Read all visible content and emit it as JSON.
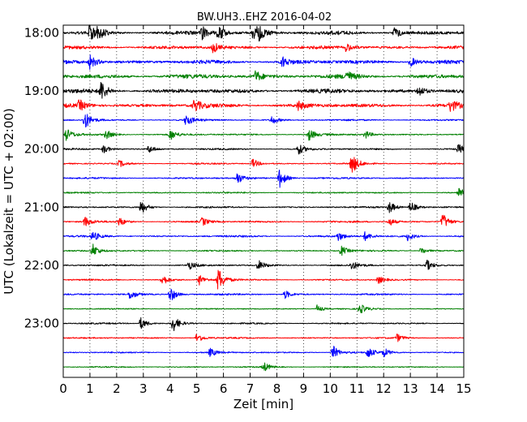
{
  "chart_data": {
    "type": "line",
    "chart_kind": "seismogram-dayplot",
    "title": "BW.UH3..EHZ 2016-04-02",
    "xlabel": "Zeit  [min]",
    "ylabel": "UTC (Lokalzeit = UTC + 02:00)",
    "xlim": [
      0,
      15
    ],
    "x_ticks": [
      "0",
      "1",
      "2",
      "3",
      "4",
      "5",
      "6",
      "7",
      "8",
      "9",
      "10",
      "11",
      "12",
      "13",
      "14",
      "15"
    ],
    "y_ticks": [
      {
        "label": "18:00",
        "row": 0
      },
      {
        "label": "19:00",
        "row": 4
      },
      {
        "label": "20:00",
        "row": 8
      },
      {
        "label": "21:00",
        "row": 12
      },
      {
        "label": "22:00",
        "row": 16
      },
      {
        "label": "23:00",
        "row": 20
      }
    ],
    "minutes_per_row": 15,
    "row_count": 24,
    "grid": {
      "x": true,
      "y": false,
      "style": "dotted"
    },
    "trace_colors": [
      "#000000",
      "#ff0000",
      "#0000ff",
      "#008000"
    ],
    "rows": [
      {
        "start": "18:00",
        "color": "#000000",
        "noise": 0.9,
        "events": [
          {
            "t": 1.0,
            "amp": 2.2
          },
          {
            "t": 1.3,
            "amp": 1.2
          },
          {
            "t": 5.2,
            "amp": 1.4
          },
          {
            "t": 5.8,
            "amp": 1.8
          },
          {
            "t": 7.1,
            "amp": 1.4
          },
          {
            "t": 7.3,
            "amp": 1.8
          },
          {
            "t": 12.4,
            "amp": 1.3
          }
        ]
      },
      {
        "start": "18:15",
        "color": "#ff0000",
        "noise": 0.8,
        "events": [
          {
            "t": 5.6,
            "amp": 1.2
          },
          {
            "t": 10.6,
            "amp": 1.1
          }
        ]
      },
      {
        "start": "18:30",
        "color": "#0000ff",
        "noise": 0.9,
        "events": [
          {
            "t": 1.0,
            "amp": 1.6
          },
          {
            "t": 8.2,
            "amp": 1.3
          },
          {
            "t": 13.0,
            "amp": 1.2
          }
        ]
      },
      {
        "start": "18:45",
        "color": "#008000",
        "noise": 1.0,
        "events": [
          {
            "t": 7.2,
            "amp": 1.3
          },
          {
            "t": 10.6,
            "amp": 1.2
          }
        ]
      },
      {
        "start": "19:00",
        "color": "#000000",
        "noise": 1.0,
        "events": [
          {
            "t": 1.4,
            "amp": 2.4
          },
          {
            "t": 13.3,
            "amp": 1.3
          }
        ]
      },
      {
        "start": "19:15",
        "color": "#ff0000",
        "noise": 0.9,
        "events": [
          {
            "t": 0.6,
            "amp": 1.2
          },
          {
            "t": 4.9,
            "amp": 1.5
          },
          {
            "t": 8.8,
            "amp": 1.0
          },
          {
            "t": 14.5,
            "amp": 1.3
          }
        ]
      },
      {
        "start": "19:30",
        "color": "#0000ff",
        "noise": 0.4,
        "events": [
          {
            "t": 0.8,
            "amp": 2.2
          },
          {
            "t": 4.6,
            "amp": 1.4
          },
          {
            "t": 7.8,
            "amp": 1.0
          }
        ]
      },
      {
        "start": "19:45",
        "color": "#008000",
        "noise": 0.4,
        "events": [
          {
            "t": 0.1,
            "amp": 1.5
          },
          {
            "t": 1.6,
            "amp": 1.1
          },
          {
            "t": 4.0,
            "amp": 1.3
          },
          {
            "t": 9.2,
            "amp": 1.4
          },
          {
            "t": 11.3,
            "amp": 1.0
          }
        ]
      },
      {
        "start": "20:00",
        "color": "#000000",
        "noise": 0.4,
        "events": [
          {
            "t": 1.5,
            "amp": 1.0
          },
          {
            "t": 3.2,
            "amp": 0.9
          },
          {
            "t": 8.8,
            "amp": 1.3
          },
          {
            "t": 14.8,
            "amp": 1.0
          }
        ]
      },
      {
        "start": "20:15",
        "color": "#ff0000",
        "noise": 0.35,
        "events": [
          {
            "t": 2.1,
            "amp": 0.8
          },
          {
            "t": 7.1,
            "amp": 1.1
          },
          {
            "t": 10.8,
            "amp": 2.4
          }
        ]
      },
      {
        "start": "20:30",
        "color": "#0000ff",
        "noise": 0.4,
        "events": [
          {
            "t": 6.5,
            "amp": 1.4
          },
          {
            "t": 8.1,
            "amp": 2.2
          }
        ]
      },
      {
        "start": "20:45",
        "color": "#008000",
        "noise": 0.35,
        "events": [
          {
            "t": 14.8,
            "amp": 1.3
          }
        ]
      },
      {
        "start": "21:00",
        "color": "#000000",
        "noise": 0.4,
        "events": [
          {
            "t": 2.9,
            "amp": 1.7
          },
          {
            "t": 12.2,
            "amp": 1.5
          },
          {
            "t": 13.0,
            "amp": 1.4
          }
        ]
      },
      {
        "start": "21:15",
        "color": "#ff0000",
        "noise": 0.4,
        "events": [
          {
            "t": 0.8,
            "amp": 1.2
          },
          {
            "t": 2.1,
            "amp": 1.0
          },
          {
            "t": 5.2,
            "amp": 1.0
          },
          {
            "t": 12.2,
            "amp": 1.0
          },
          {
            "t": 14.2,
            "amp": 2.0
          }
        ]
      },
      {
        "start": "21:30",
        "color": "#0000ff",
        "noise": 0.45,
        "events": [
          {
            "t": 1.1,
            "amp": 1.1
          },
          {
            "t": 10.3,
            "amp": 1.0
          },
          {
            "t": 11.3,
            "amp": 1.0
          },
          {
            "t": 12.9,
            "amp": 1.0
          }
        ]
      },
      {
        "start": "21:45",
        "color": "#008000",
        "noise": 0.35,
        "events": [
          {
            "t": 1.1,
            "amp": 1.6
          },
          {
            "t": 10.4,
            "amp": 1.2
          },
          {
            "t": 13.4,
            "amp": 0.9
          }
        ]
      },
      {
        "start": "22:00",
        "color": "#000000",
        "noise": 0.4,
        "events": [
          {
            "t": 4.7,
            "amp": 1.0
          },
          {
            "t": 7.3,
            "amp": 1.2
          },
          {
            "t": 10.8,
            "amp": 1.0
          },
          {
            "t": 13.6,
            "amp": 1.3
          }
        ]
      },
      {
        "start": "22:15",
        "color": "#ff0000",
        "noise": 0.35,
        "events": [
          {
            "t": 3.7,
            "amp": 1.3
          },
          {
            "t": 5.1,
            "amp": 1.2
          },
          {
            "t": 5.8,
            "amp": 2.8
          },
          {
            "t": 11.8,
            "amp": 0.9
          }
        ]
      },
      {
        "start": "22:30",
        "color": "#0000ff",
        "noise": 0.4,
        "events": [
          {
            "t": 2.5,
            "amp": 1.2
          },
          {
            "t": 4.0,
            "amp": 1.9
          },
          {
            "t": 8.3,
            "amp": 1.0
          }
        ]
      },
      {
        "start": "22:45",
        "color": "#008000",
        "noise": 0.3,
        "events": [
          {
            "t": 9.5,
            "amp": 0.9
          },
          {
            "t": 11.1,
            "amp": 1.2
          }
        ]
      },
      {
        "start": "23:00",
        "color": "#000000",
        "noise": 0.35,
        "events": [
          {
            "t": 2.9,
            "amp": 1.4
          },
          {
            "t": 4.1,
            "amp": 2.0
          }
        ]
      },
      {
        "start": "23:15",
        "color": "#ff0000",
        "noise": 0.35,
        "events": [
          {
            "t": 5.0,
            "amp": 1.2
          },
          {
            "t": 12.5,
            "amp": 0.9
          }
        ]
      },
      {
        "start": "23:30",
        "color": "#0000ff",
        "noise": 0.35,
        "events": [
          {
            "t": 5.5,
            "amp": 1.0
          },
          {
            "t": 10.1,
            "amp": 1.6
          },
          {
            "t": 11.4,
            "amp": 1.3
          },
          {
            "t": 12.0,
            "amp": 1.0
          }
        ]
      },
      {
        "start": "23:45",
        "color": "#008000",
        "noise": 0.3,
        "events": [
          {
            "t": 7.5,
            "amp": 1.1
          }
        ]
      }
    ]
  }
}
